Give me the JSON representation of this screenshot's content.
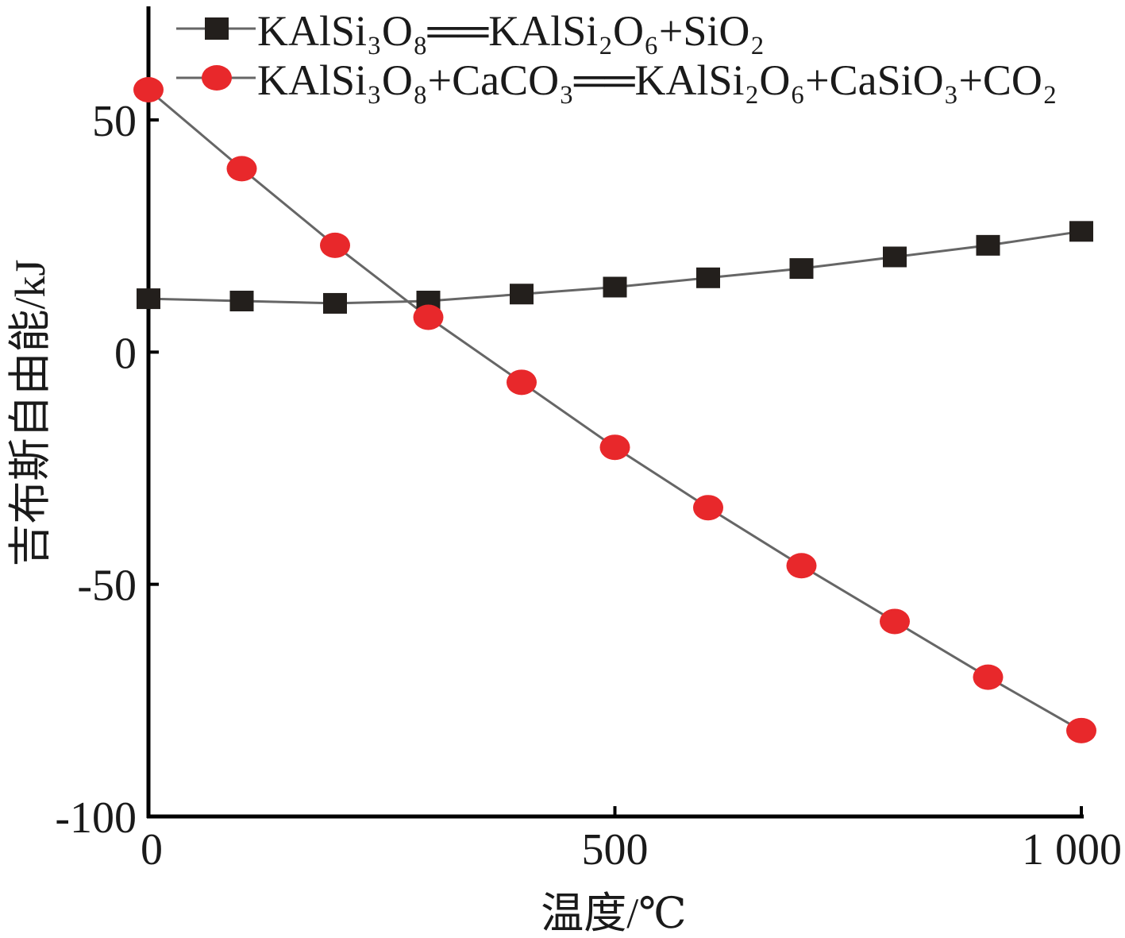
{
  "chart_data": {
    "type": "line",
    "title": "",
    "xlabel": "温度/℃",
    "ylabel": "吉布斯自由能/kJ",
    "xlim": [
      0,
      1000
    ],
    "ylim": [
      -100,
      70
    ],
    "x_ticks": [
      {
        "value": 0,
        "label": "0"
      },
      {
        "value": 500,
        "label": "500"
      },
      {
        "value": 1000,
        "label": "1 000"
      }
    ],
    "y_ticks": [
      {
        "value": 50,
        "label": "50"
      },
      {
        "value": 0,
        "label": "0"
      },
      {
        "value": -50,
        "label": "-50"
      },
      {
        "value": -100,
        "label": "-100"
      }
    ],
    "grid": false,
    "legend": "top",
    "x": [
      0,
      100,
      200,
      300,
      400,
      500,
      600,
      700,
      800,
      900,
      1000
    ],
    "series": [
      {
        "name": "KAlSi₃O₈══KAlSi₂O₆+SiO₂",
        "marker": "square",
        "color": "#231f1c",
        "values": [
          11.5,
          11.0,
          10.5,
          11.0,
          12.5,
          14.0,
          16.0,
          18.0,
          20.5,
          23.0,
          26.0
        ]
      },
      {
        "name": "KAlSi₃O₈+CaCO₃══KAlSi₂O₆+CaSiO₃+CO₂",
        "marker": "circle",
        "color": "#e8282b",
        "values": [
          56.5,
          39.5,
          23.0,
          7.5,
          -6.5,
          -20.5,
          -33.5,
          -46.0,
          -58.0,
          -70.0,
          -81.5
        ]
      }
    ],
    "line_color": "#666666"
  }
}
